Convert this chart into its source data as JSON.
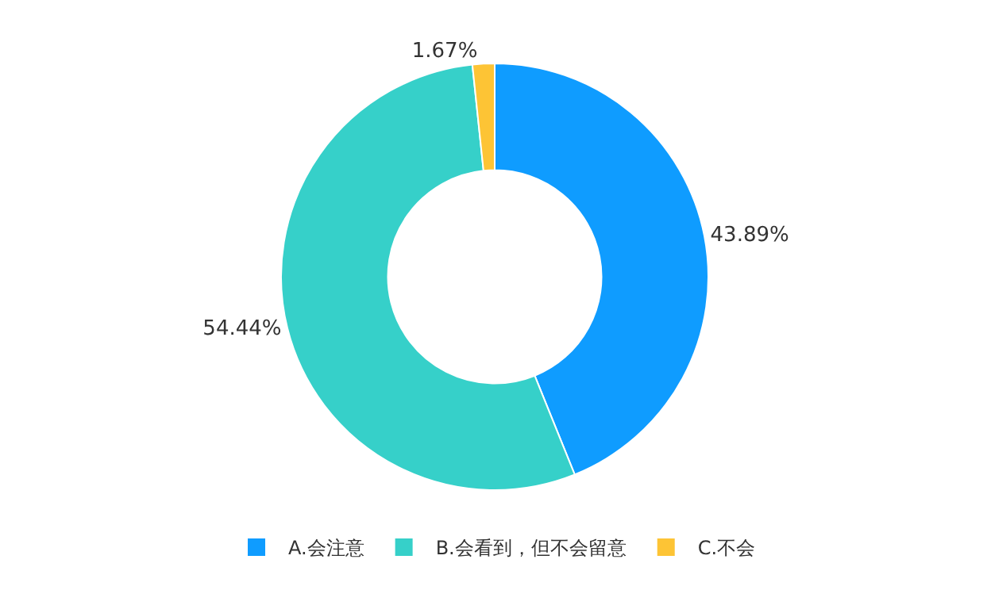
{
  "chart_data": {
    "type": "donut",
    "categories": [
      "A.会注意",
      "B.会看到，但不会留意",
      "C.不会"
    ],
    "values": [
      43.89,
      54.44,
      1.67
    ],
    "value_labels": [
      "43.89%",
      "54.44%",
      "1.67%"
    ],
    "colors": [
      "#0f9cff",
      "#36d0c9",
      "#fdc435"
    ],
    "legend": "bottom"
  }
}
